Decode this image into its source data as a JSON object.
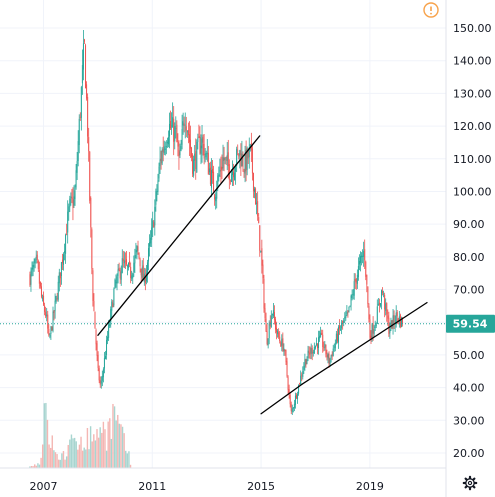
{
  "colors": {
    "up": "#26a69a",
    "down": "#ef5350",
    "volume_up": "#a8d5d0",
    "volume_down": "#f4b6b3",
    "price_line": "#26a69a",
    "price_badge": "#26a69a",
    "alert": "#f7a24a",
    "axis_text": "#131722",
    "trendline": "#000000",
    "grid": "#f0f3fa"
  },
  "icons": {
    "alert": "alert-icon",
    "settings": "gear-icon"
  },
  "chart_data": {
    "type": "candlestick",
    "x_ticks": [
      "2007",
      "2011",
      "2015",
      "2019"
    ],
    "x_tick_years": [
      2007,
      2011,
      2015,
      2019
    ],
    "xlim": [
      2005.4,
      2021.8
    ],
    "y_ticks": [
      "20.00",
      "30.00",
      "40.00",
      "50.00",
      "60.00",
      "70.00",
      "80.00",
      "90.00",
      "100.00",
      "110.00",
      "120.00",
      "130.00",
      "140.00",
      "150.00"
    ],
    "ylim": [
      15,
      155
    ],
    "last_price": 59.54,
    "last_price_label": "59.54",
    "price_keypoints": [
      [
        2006.5,
        74
      ],
      [
        2006.75,
        78
      ],
      [
        2006.95,
        66
      ],
      [
        2007.1,
        62
      ],
      [
        2007.2,
        54
      ],
      [
        2007.45,
        66
      ],
      [
        2007.7,
        80
      ],
      [
        2007.95,
        95
      ],
      [
        2008.15,
        98
      ],
      [
        2008.35,
        125
      ],
      [
        2008.5,
        145
      ],
      [
        2008.62,
        120
      ],
      [
        2008.8,
        70
      ],
      [
        2009.0,
        45
      ],
      [
        2009.1,
        40
      ],
      [
        2009.35,
        55
      ],
      [
        2009.6,
        70
      ],
      [
        2009.9,
        78
      ],
      [
        2010.2,
        75
      ],
      [
        2010.45,
        82
      ],
      [
        2010.7,
        72
      ],
      [
        2011.0,
        88
      ],
      [
        2011.3,
        110
      ],
      [
        2011.6,
        120
      ],
      [
        2011.85,
        118
      ],
      [
        2012.0,
        108
      ],
      [
        2012.2,
        125
      ],
      [
        2012.5,
        108
      ],
      [
        2012.8,
        116
      ],
      [
        2013.0,
        110
      ],
      [
        2013.3,
        100
      ],
      [
        2013.6,
        110
      ],
      [
        2013.9,
        106
      ],
      [
        2014.2,
        112
      ],
      [
        2014.4,
        108
      ],
      [
        2014.6,
        112
      ],
      [
        2014.8,
        98
      ],
      [
        2015.0,
        80
      ],
      [
        2015.2,
        54
      ],
      [
        2015.4,
        64
      ],
      [
        2015.6,
        56
      ],
      [
        2015.85,
        52
      ],
      [
        2016.1,
        32
      ],
      [
        2016.3,
        38
      ],
      [
        2016.6,
        48
      ],
      [
        2016.9,
        52
      ],
      [
        2017.2,
        55
      ],
      [
        2017.5,
        48
      ],
      [
        2017.9,
        58
      ],
      [
        2018.2,
        62
      ],
      [
        2018.5,
        74
      ],
      [
        2018.8,
        82
      ],
      [
        2019.0,
        56
      ],
      [
        2019.2,
        60
      ],
      [
        2019.45,
        70
      ],
      [
        2019.7,
        58
      ],
      [
        2020.0,
        62
      ],
      [
        2020.2,
        59.54
      ]
    ],
    "volume_keypoints": [
      [
        2006.5,
        0.02
      ],
      [
        2006.9,
        0.1
      ],
      [
        2007.0,
        0.95
      ],
      [
        2007.2,
        0.6
      ],
      [
        2007.5,
        0.18
      ],
      [
        2007.8,
        0.25
      ],
      [
        2008.1,
        0.45
      ],
      [
        2008.4,
        0.55
      ],
      [
        2008.7,
        0.5
      ],
      [
        2009.0,
        0.72
      ],
      [
        2009.3,
        0.6
      ],
      [
        2009.6,
        0.9
      ],
      [
        2009.9,
        0.5
      ],
      [
        2010.1,
        0.3
      ],
      [
        2010.2,
        0.05
      ]
    ],
    "trendlines": [
      {
        "from": [
          2009.0,
          56
        ],
        "to": [
          2014.95,
          117
        ]
      },
      {
        "from": [
          2015.0,
          32
        ],
        "to": [
          2016.5,
          41
        ]
      },
      {
        "from": [
          2016.5,
          41
        ],
        "to": [
          2021.1,
          66
        ]
      }
    ]
  }
}
